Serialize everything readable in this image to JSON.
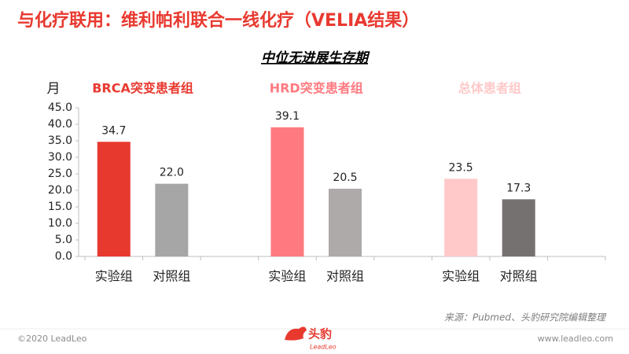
{
  "slide": {
    "title": "与化疗联用：维利帕利联合一线化疗（VELIA结果）",
    "source": "来源：Pubmed、头豹研究院编辑整理",
    "copyright": "©2020 LeadLeo",
    "website": "www.leadleo.com",
    "logo_text": "头豹",
    "logo_sub": "LeadLeo"
  },
  "chart_data": {
    "type": "bar",
    "title": "中位无进展生存期",
    "y_label": "月",
    "groups": [
      {
        "name": "BRCA突变患者组",
        "color": "#e8392f"
      },
      {
        "name": "HRD突变患者组",
        "color": "#ff7a80"
      },
      {
        "name": "总体患者组",
        "color": "#ffc9c9"
      }
    ],
    "categories": [
      "实验组",
      "对照组",
      "实验组",
      "对照组",
      "实验组",
      "对照组"
    ],
    "values": [
      34.7,
      22,
      39.1,
      20.5,
      23.5,
      17.3
    ],
    "value_labels": [
      "34.7",
      "22.0",
      "39.1",
      "20.5",
      "23.5",
      "17.3"
    ],
    "colors": [
      "#e8392f",
      "#a6a6a6",
      "#ff7a80",
      "#aeaaaa",
      "#ffc9c9",
      "#767171"
    ],
    "ylim": [
      0,
      45
    ],
    "yticks": [
      {
        "value": 0,
        "label": "0.0"
      },
      {
        "value": 5,
        "label": "5.0"
      },
      {
        "value": 10,
        "label": "10.0"
      },
      {
        "value": 15,
        "label": "15.0"
      },
      {
        "value": 20,
        "label": "20.0"
      },
      {
        "value": 25,
        "label": "25.0"
      },
      {
        "value": 30,
        "label": "30.0"
      },
      {
        "value": 35,
        "label": "35.0"
      },
      {
        "value": 40,
        "label": "40.0"
      },
      {
        "value": 45,
        "label": "45.0"
      }
    ]
  }
}
